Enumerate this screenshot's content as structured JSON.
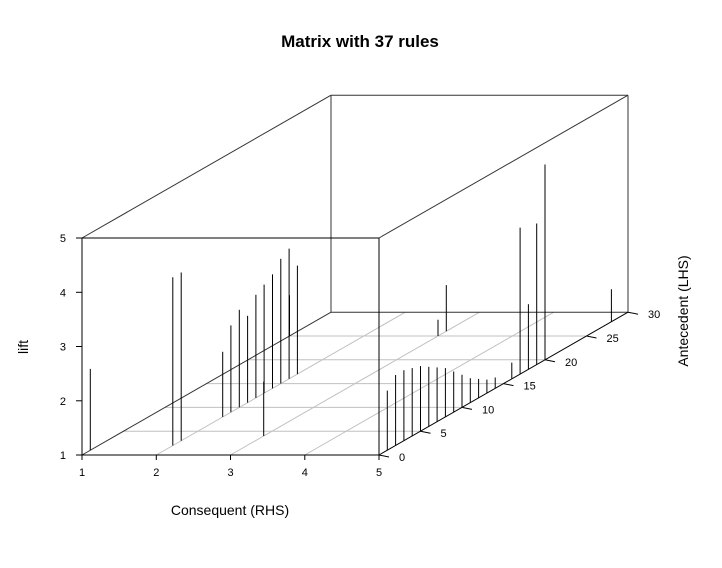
{
  "chart_data": {
    "type": "scatter3d",
    "title": "Matrix with 37 rules",
    "xlabel": "Consequent (RHS)",
    "ylabel": "Antecedent (LHS)",
    "zlabel": "lift",
    "x_ticks": [
      "1",
      "2",
      "3",
      "4",
      "5"
    ],
    "y_ticks": [
      "0",
      "5",
      "10",
      "15",
      "20",
      "25",
      "30"
    ],
    "z_ticks": [
      "1",
      "2",
      "3",
      "4",
      "5"
    ],
    "xlim": [
      1,
      5
    ],
    "ylim": [
      0,
      30
    ],
    "zlim": [
      1,
      5
    ],
    "grid": true,
    "rules": [
      {
        "rhs": 1,
        "lhs": 1,
        "lift": 2.5
      },
      {
        "rhs": 1,
        "lhs": 25,
        "lift": 1.75
      },
      {
        "rhs": 2,
        "lhs": 2,
        "lift": 4.1
      },
      {
        "rhs": 2,
        "lhs": 3,
        "lift": 4.1
      },
      {
        "rhs": 2,
        "lhs": 8,
        "lift": 2.2
      },
      {
        "rhs": 2,
        "lhs": 9,
        "lift": 2.6
      },
      {
        "rhs": 2,
        "lhs": 10,
        "lift": 2.8
      },
      {
        "rhs": 2,
        "lhs": 11,
        "lift": 2.6
      },
      {
        "rhs": 2,
        "lhs": 12,
        "lift": 2.9
      },
      {
        "rhs": 2,
        "lhs": 13,
        "lift": 3.0
      },
      {
        "rhs": 2,
        "lhs": 14,
        "lift": 3.1
      },
      {
        "rhs": 2,
        "lhs": 15,
        "lift": 3.3
      },
      {
        "rhs": 2,
        "lhs": 16,
        "lift": 3.4
      },
      {
        "rhs": 2,
        "lhs": 17,
        "lift": 3.0
      },
      {
        "rhs": 3,
        "lhs": 4,
        "lift": 2.0
      },
      {
        "rhs": 3,
        "lhs": 25,
        "lift": 1.3
      },
      {
        "rhs": 3,
        "lhs": 26,
        "lift": 1.85
      },
      {
        "rhs": 5,
        "lhs": 1,
        "lift": 2.1
      },
      {
        "rhs": 5,
        "lhs": 2,
        "lift": 2.3
      },
      {
        "rhs": 5,
        "lhs": 3,
        "lift": 2.3
      },
      {
        "rhs": 5,
        "lhs": 4,
        "lift": 2.25
      },
      {
        "rhs": 5,
        "lhs": 5,
        "lift": 2.2
      },
      {
        "rhs": 5,
        "lhs": 6,
        "lift": 2.1
      },
      {
        "rhs": 5,
        "lhs": 7,
        "lift": 2.0
      },
      {
        "rhs": 5,
        "lhs": 8,
        "lift": 1.9
      },
      {
        "rhs": 5,
        "lhs": 9,
        "lift": 1.75
      },
      {
        "rhs": 5,
        "lhs": 10,
        "lift": 1.6
      },
      {
        "rhs": 5,
        "lhs": 11,
        "lift": 1.45
      },
      {
        "rhs": 5,
        "lhs": 12,
        "lift": 1.35
      },
      {
        "rhs": 5,
        "lhs": 13,
        "lift": 1.25
      },
      {
        "rhs": 5,
        "lhs": 14,
        "lift": 1.2
      },
      {
        "rhs": 5,
        "lhs": 16,
        "lift": 1.3
      },
      {
        "rhs": 5,
        "lhs": 17,
        "lift": 3.7
      },
      {
        "rhs": 5,
        "lhs": 18,
        "lift": 2.2
      },
      {
        "rhs": 5,
        "lhs": 19,
        "lift": 3.6
      },
      {
        "rhs": 5,
        "lhs": 20,
        "lift": 4.6
      },
      {
        "rhs": 5,
        "lhs": 28,
        "lift": 1.6
      }
    ]
  }
}
